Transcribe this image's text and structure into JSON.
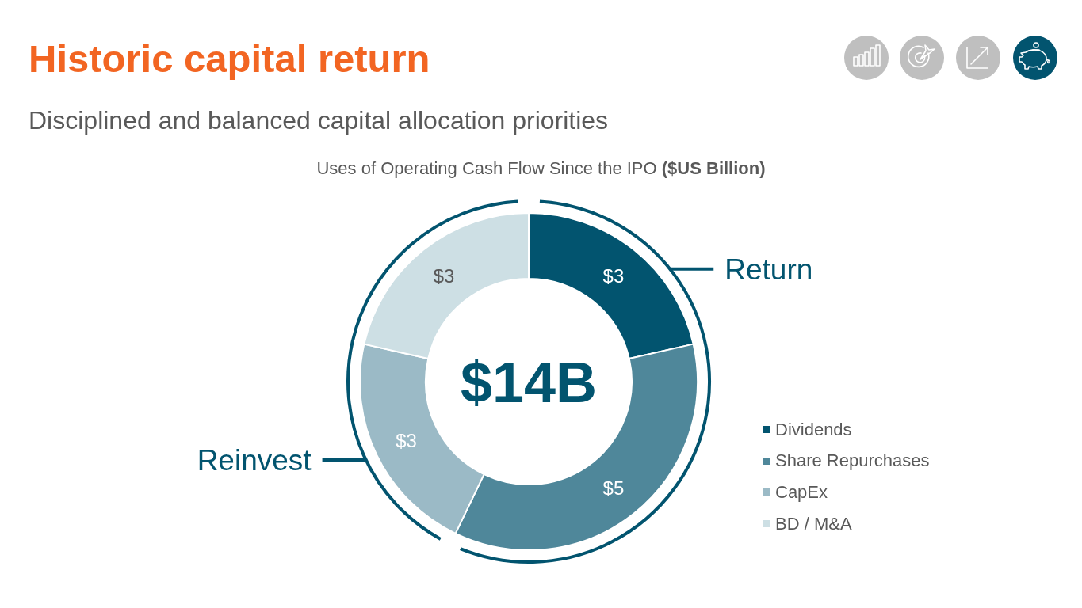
{
  "chart_data": {
    "type": "donut",
    "title": "Historic capital return",
    "subtitle": "Disciplined and balanced capital allocation priorities",
    "categories": [
      "Dividends",
      "Share Repurchases",
      "CapEx",
      "BD / M&A"
    ],
    "values": [
      3,
      5,
      3,
      3
    ],
    "colors": [
      "#02546f",
      "#4f879a",
      "#9bbac6",
      "#cddfe4"
    ],
    "value_labels": [
      "$3",
      "$5",
      "$3",
      "$3"
    ],
    "annotations": [
      "Uses of Operating Cash Flow Since the IPO ($US Billion)",
      "$14B",
      "Return",
      "Reinvest"
    ],
    "legend": "bottom right"
  }
}
